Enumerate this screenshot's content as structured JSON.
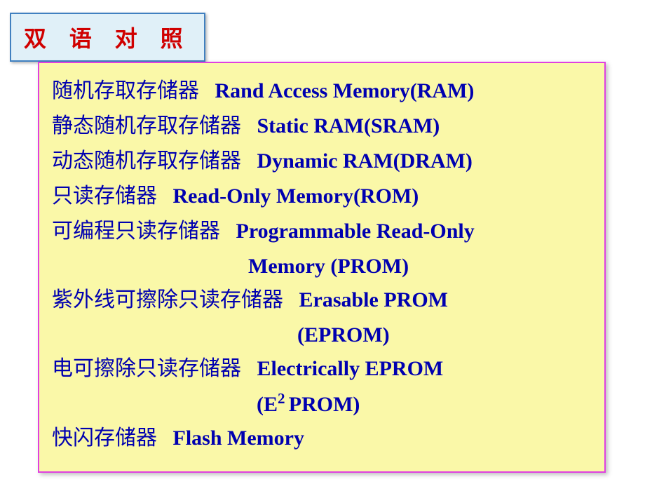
{
  "header": {
    "title": "双 语 对 照",
    "text_color": "#d00000",
    "background_color": "#e0f0f8",
    "border_color": "#4080c0",
    "font_size": 32
  },
  "content": {
    "background_color": "#faf8a8",
    "border_color": "#e040e0",
    "text_color": "#0000b0",
    "chinese_font_size": 30,
    "english_font_size": 30,
    "entries": [
      {
        "chinese": "随机存取存储器",
        "english": "Rand Access Memory(RAM)"
      },
      {
        "chinese": "静态随机存取存储器",
        "english": "Static RAM(SRAM)"
      },
      {
        "chinese": "动态随机存取存储器",
        "english": "Dynamic RAM(DRAM)"
      },
      {
        "chinese": "只读存储器",
        "english": "Read-Only Memory(ROM)"
      },
      {
        "chinese": "可编程只读存储器",
        "english": "Programmable Read-Only",
        "continuation": "Memory (PROM)"
      },
      {
        "chinese": "紫外线可擦除只读存储器",
        "english": "Erasable  PROM",
        "continuation": "(EPROM)"
      },
      {
        "chinese": "电可擦除只读存储器",
        "english": "Electrically EPROM",
        "continuation_html": "(E<sup>2 </sup>PROM)"
      },
      {
        "chinese": "快闪存储器",
        "english": "Flash Memory"
      }
    ]
  }
}
